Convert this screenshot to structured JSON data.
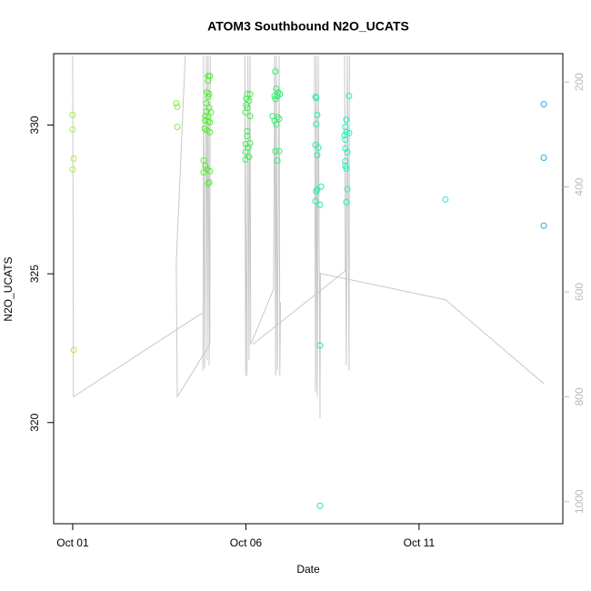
{
  "chart_data": {
    "type": "scatter",
    "title": "ATOM3 Southbound N2O_UCATS",
    "x_label": "Date",
    "y_label": "N2O_UCATS",
    "xlim": [
      -0.55,
      14.15
    ],
    "xticks": [
      {
        "value": 0,
        "label": "Oct 01"
      },
      {
        "value": 5,
        "label": "Oct 06"
      },
      {
        "value": 10,
        "label": "Oct 11"
      }
    ],
    "ylim": [
      316.6,
      332.4
    ],
    "yticks": [
      320,
      325,
      330
    ],
    "y2lim": [
      1042,
      146
    ],
    "y2ticks": [
      200,
      400,
      600,
      800,
      1000
    ],
    "series": [
      {
        "type": "line",
        "axis": "y2",
        "color": "#c8c8c8",
        "x": [
          0,
          0.02,
          3.75,
          null,
          3.25,
          2.99,
          3.02,
          3.96,
          3.97,
          3.94,
          3.91,
          3.88,
          3.86,
          3.81,
          3.78,
          3.76,
          null,
          4.99,
          4.97,
          5.03,
          5.06,
          5.09,
          5.12,
          5.14,
          5.8,
          5.83,
          5.86,
          5.88,
          5.91,
          5.96,
          5.98,
          6.0,
          null,
          6.98,
          7.01,
          7.03,
          7.06,
          7.09,
          7.14,
          7.15,
          10.76,
          13.6,
          null,
          5.2,
          7.87,
          7.85,
          7.9,
          7.93,
          7.98,
          7.99
        ],
        "values": [
          150,
          800,
          640,
          null,
          150,
          545,
          800,
          700,
          150,
          740,
          150,
          730,
          150,
          745,
          150,
          750,
          null,
          760,
          150,
          760,
          150,
          730,
          150,
          700,
          595,
          150,
          760,
          150,
          750,
          150,
          760,
          620,
          null,
          150,
          790,
          150,
          800,
          150,
          840,
          565,
          615,
          775,
          null,
          700,
          560,
          150,
          740,
          150,
          750,
          150
        ]
      },
      {
        "color": "#a8f040",
        "x": [
          0,
          0,
          0.03,
          0,
          0.03
        ],
        "values": [
          330.34,
          329.85,
          328.87,
          328.51,
          322.44
        ]
      },
      {
        "color": "#88f040",
        "x": [
          2.99,
          3.02,
          3.02
        ],
        "values": [
          330.73,
          330.61,
          329.94
        ]
      },
      {
        "color": "#50f030",
        "x": [
          3.91,
          3.96,
          3.91,
          3.88,
          3.94,
          3.91,
          3.86,
          3.94,
          3.86,
          3.83,
          3.91,
          3.99,
          3.83,
          3.91,
          3.96,
          3.81,
          3.88,
          3.96,
          3.78,
          3.83,
          3.88,
          3.96,
          3.78,
          3.94,
          3.91
        ],
        "values": [
          331.65,
          331.65,
          331.49,
          331.1,
          331.04,
          330.95,
          330.73,
          330.58,
          330.46,
          330.3,
          330.27,
          330.43,
          330.15,
          330.12,
          330.09,
          329.88,
          329.82,
          329.76,
          328.81,
          328.63,
          328.51,
          328.45,
          328.41,
          328.08,
          328.02
        ]
      },
      {
        "color": "#40f050",
        "x": [
          5.04,
          5.12,
          5.01,
          5.09,
          5.01,
          5.04,
          4.99,
          5.12,
          5.04,
          5.04,
          4.99,
          5.12,
          5.07,
          4.99,
          5.09,
          4.99
        ],
        "values": [
          331.04,
          331.04,
          330.88,
          330.82,
          330.67,
          330.58,
          330.43,
          330.3,
          329.79,
          329.63,
          329.36,
          329.39,
          329.24,
          329.09,
          328.93,
          328.84
        ]
      },
      {
        "color": "#30f070",
        "x": [
          5.85,
          5.83,
          5.91,
          5.88,
          5.85,
          5.93,
          5.98,
          5.77,
          5.91,
          5.83,
          5.96,
          5.88,
          5.96,
          5.91,
          5.85
        ],
        "values": [
          331.8,
          330.98,
          330.98,
          331.22,
          330.88,
          331.1,
          331.04,
          330.3,
          330.27,
          330.15,
          330.21,
          330.03,
          329.12,
          328.81,
          329.12
        ]
      },
      {
        "color": "#20f0a0",
        "x": [
          7.01,
          7.03,
          7.06,
          7.03,
          7.01,
          7.09,
          7.06,
          7.06,
          7.17,
          7.03,
          7.01,
          7.14,
          7.14,
          7.14
        ],
        "values": [
          330.95,
          330.91,
          330.34,
          330.03,
          329.33,
          329.24,
          328.99,
          327.84,
          327.93,
          327.77,
          327.44,
          327.32,
          322.59,
          317.2
        ]
      },
      {
        "color": "#20f0c0",
        "x": [
          7.98,
          7.9,
          7.87,
          7.9,
          7.85,
          7.98,
          7.87,
          7.87,
          7.93,
          7.87,
          7.87,
          7.9,
          7.93,
          7.9
        ],
        "values": [
          330.98,
          330.18,
          329.94,
          329.76,
          329.66,
          329.73,
          329.51,
          329.21,
          329.09,
          328.78,
          328.63,
          328.54,
          327.84,
          327.41
        ]
      },
      {
        "color": "#20e8e0",
        "x": [
          10.76
        ],
        "values": [
          327.5
        ]
      },
      {
        "color": "#20b0f0",
        "x": [
          13.6,
          13.6,
          13.6
        ],
        "values": [
          330.7,
          328.9,
          326.62
        ]
      }
    ]
  }
}
